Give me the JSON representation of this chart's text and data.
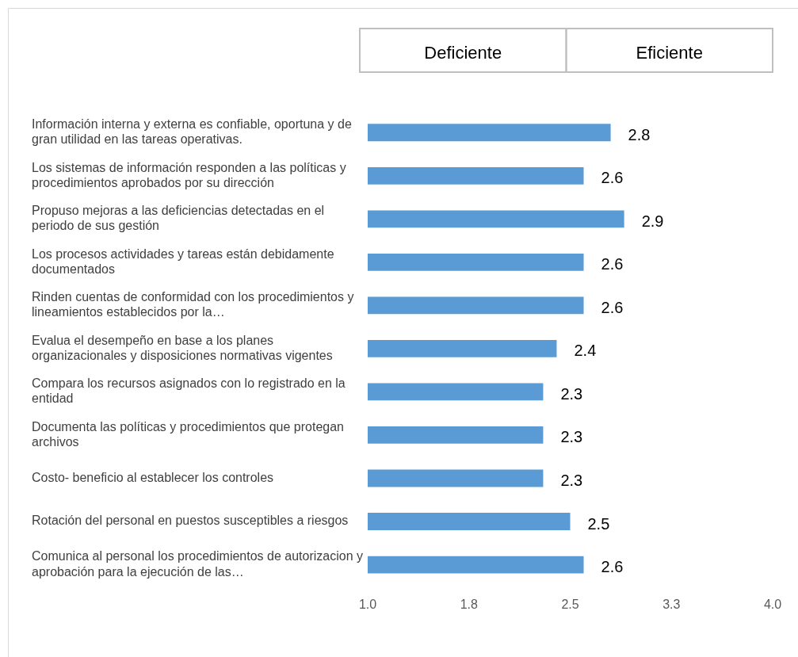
{
  "chart_data": {
    "type": "bar",
    "orientation": "horizontal",
    "categories": [
      "Información interna y externa es confiable, oportuna y de gran utilidad en las tareas operativas.",
      "Los sistemas de información responden a las políticas y procedimientos aprobados por su dirección",
      "Propuso mejoras a las deficiencias detectadas en el periodo de sus gestión",
      "Los procesos actividades y tareas están debidamente documentados",
      "Rinden cuentas de conformidad con los procedimientos y lineamientos establecidos por la…",
      "Evalua el desempeño en base a los planes organizacionales y disposiciones normativas vigentes",
      "Compara los recursos asignados con lo registrado en la entidad",
      "Documenta las políticas y procedimientos que protegan archivos",
      "Costo- beneficio al establecer los controles",
      "Rotación del personal en puestos susceptibles a riesgos",
      "Comunica al personal los procedimientos de autorizacion y aprobación para la ejecución de las…"
    ],
    "values": [
      2.8,
      2.6,
      2.9,
      2.6,
      2.6,
      2.4,
      2.3,
      2.3,
      2.3,
      2.5,
      2.6
    ],
    "color": "#5b9bd5",
    "data_labels": true,
    "xlim": [
      1,
      4
    ],
    "xticks": [
      {
        "value": 1,
        "label": "1.0"
      },
      {
        "value": 1.75,
        "label": "1.8"
      },
      2.5,
      {
        "value": 3.25,
        "label": "3.3"
      },
      {
        "value": 4,
        "label": "4.0"
      }
    ],
    "grid": false,
    "legend": false,
    "annotations": [
      "Deficiente",
      "Eficiente"
    ]
  }
}
